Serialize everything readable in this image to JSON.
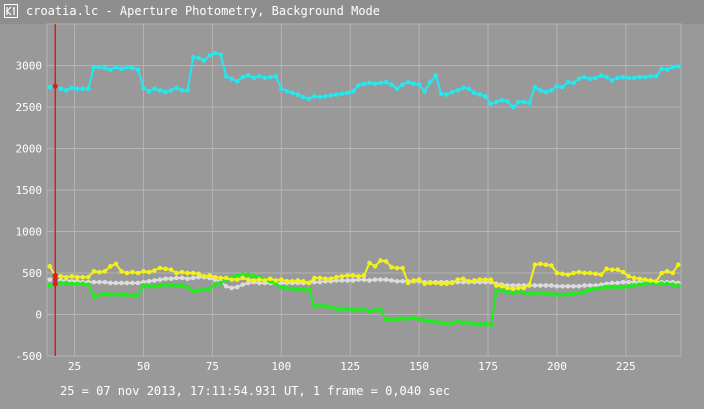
{
  "window": {
    "title": "croatia.lc - Aperture Photometry, Background Mode",
    "icon": "app-icon"
  },
  "status_bar": {
    "text": "25 = 07 nov 2013, 17:11:54.931 UT, 1 frame = 0,040 sec"
  },
  "colors": {
    "background": "#999999",
    "grid": "#b4b4b4",
    "cyan": "#22e8f2",
    "yellow": "#f2f21a",
    "green": "#18f018",
    "white": "#dcdcdc",
    "cursor": "#d62020"
  },
  "chart_data": {
    "type": "scatter",
    "title": "",
    "xlabel": "",
    "ylabel": "",
    "xlim": [
      15,
      245
    ],
    "ylim": [
      -500,
      3500
    ],
    "x_ticks": [
      25,
      50,
      75,
      100,
      125,
      150,
      175,
      200,
      225
    ],
    "y_ticks": [
      -500,
      0,
      500,
      1000,
      1500,
      2000,
      2500,
      3000
    ],
    "grid": true,
    "legend": "none",
    "cursor_x": 18,
    "series": [
      {
        "name": "",
        "color": "cyan",
        "x": [
          16,
          18,
          20,
          22,
          24,
          26,
          28,
          30,
          32,
          34,
          36,
          38,
          40,
          42,
          44,
          46,
          48,
          50,
          52,
          54,
          56,
          58,
          60,
          62,
          64,
          66,
          68,
          70,
          72,
          74,
          76,
          78,
          80,
          82,
          84,
          86,
          88,
          90,
          92,
          94,
          96,
          98,
          100,
          102,
          104,
          106,
          108,
          110,
          112,
          114,
          116,
          118,
          120,
          122,
          124,
          126,
          128,
          130,
          132,
          134,
          136,
          138,
          140,
          142,
          144,
          146,
          148,
          150,
          152,
          154,
          156,
          158,
          160,
          162,
          164,
          166,
          168,
          170,
          172,
          174,
          176,
          178,
          180,
          182,
          184,
          186,
          188,
          190,
          192,
          194,
          196,
          198,
          200,
          202,
          204,
          206,
          208,
          210,
          212,
          214,
          216,
          218,
          220,
          222,
          224,
          226,
          228,
          230,
          232,
          234,
          236,
          238,
          240,
          242,
          244
        ],
        "values": [
          2740,
          2750,
          2720,
          2700,
          2730,
          2720,
          2720,
          2720,
          2980,
          2980,
          2970,
          2950,
          2980,
          2960,
          2980,
          2970,
          2950,
          2730,
          2690,
          2720,
          2700,
          2680,
          2700,
          2730,
          2700,
          2700,
          3100,
          3090,
          3060,
          3120,
          3150,
          3130,
          2870,
          2840,
          2810,
          2860,
          2880,
          2850,
          2870,
          2850,
          2860,
          2870,
          2720,
          2690,
          2670,
          2650,
          2620,
          2600,
          2630,
          2620,
          2630,
          2640,
          2650,
          2660,
          2670,
          2690,
          2760,
          2780,
          2790,
          2780,
          2790,
          2800,
          2770,
          2720,
          2770,
          2800,
          2780,
          2770,
          2690,
          2800,
          2880,
          2660,
          2650,
          2680,
          2700,
          2730,
          2720,
          2670,
          2650,
          2630,
          2540,
          2560,
          2580,
          2570,
          2500,
          2560,
          2560,
          2550,
          2740,
          2700,
          2680,
          2700,
          2750,
          2740,
          2800,
          2790,
          2840,
          2860,
          2840,
          2850,
          2880,
          2860,
          2820,
          2850,
          2860,
          2850,
          2850,
          2860,
          2860,
          2870,
          2870,
          2960,
          2950,
          2980,
          2990
        ]
      },
      {
        "name": "",
        "color": "yellow",
        "x": [
          16,
          18,
          20,
          22,
          24,
          26,
          28,
          30,
          32,
          34,
          36,
          38,
          40,
          42,
          44,
          46,
          48,
          50,
          52,
          54,
          56,
          58,
          60,
          62,
          64,
          66,
          68,
          70,
          72,
          74,
          76,
          78,
          80,
          82,
          84,
          86,
          88,
          90,
          92,
          94,
          96,
          98,
          100,
          102,
          104,
          106,
          108,
          110,
          112,
          114,
          116,
          118,
          120,
          122,
          124,
          126,
          128,
          130,
          132,
          134,
          136,
          138,
          140,
          142,
          144,
          146,
          148,
          150,
          152,
          154,
          156,
          158,
          160,
          162,
          164,
          166,
          168,
          170,
          172,
          174,
          176,
          178,
          180,
          182,
          184,
          186,
          188,
          190,
          192,
          194,
          196,
          198,
          200,
          202,
          204,
          206,
          208,
          210,
          212,
          214,
          216,
          218,
          220,
          222,
          224,
          226,
          228,
          230,
          232,
          234,
          236,
          238,
          240,
          242,
          244
        ],
        "values": [
          580,
          470,
          460,
          450,
          460,
          450,
          450,
          450,
          520,
          510,
          520,
          580,
          610,
          520,
          500,
          510,
          500,
          520,
          510,
          530,
          560,
          550,
          540,
          500,
          510,
          500,
          500,
          490,
          460,
          470,
          450,
          440,
          440,
          420,
          420,
          440,
          420,
          410,
          420,
          410,
          430,
          410,
          420,
          400,
          400,
          410,
          400,
          380,
          440,
          440,
          430,
          430,
          450,
          460,
          470,
          470,
          460,
          470,
          620,
          580,
          650,
          640,
          570,
          560,
          560,
          380,
          410,
          420,
          370,
          380,
          380,
          370,
          370,
          380,
          420,
          430,
          400,
          410,
          420,
          420,
          420,
          350,
          340,
          320,
          310,
          320,
          320,
          360,
          600,
          610,
          600,
          590,
          500,
          490,
          480,
          500,
          510,
          500,
          500,
          490,
          480,
          550,
          540,
          540,
          510,
          460,
          440,
          430,
          420,
          410,
          400,
          500,
          520,
          500,
          600
        ]
      },
      {
        "name": "",
        "color": "white",
        "x": [
          16,
          18,
          20,
          22,
          24,
          26,
          28,
          30,
          32,
          34,
          36,
          38,
          40,
          42,
          44,
          46,
          48,
          50,
          52,
          54,
          56,
          58,
          60,
          62,
          64,
          66,
          68,
          70,
          72,
          74,
          76,
          78,
          80,
          82,
          84,
          86,
          88,
          90,
          92,
          94,
          96,
          98,
          100,
          102,
          104,
          106,
          108,
          110,
          112,
          114,
          116,
          118,
          120,
          122,
          124,
          126,
          128,
          130,
          132,
          134,
          136,
          138,
          140,
          142,
          144,
          146,
          148,
          150,
          152,
          154,
          156,
          158,
          160,
          162,
          164,
          166,
          168,
          170,
          172,
          174,
          176,
          178,
          180,
          182,
          184,
          186,
          188,
          190,
          192,
          194,
          196,
          198,
          200,
          202,
          204,
          206,
          208,
          210,
          212,
          214,
          216,
          218,
          220,
          222,
          224,
          226,
          228,
          230,
          232,
          234,
          236,
          238,
          240,
          242,
          244
        ],
        "values": [
          420,
          420,
          410,
          410,
          400,
          400,
          390,
          390,
          390,
          390,
          390,
          380,
          380,
          380,
          380,
          380,
          380,
          390,
          400,
          410,
          420,
          430,
          430,
          440,
          440,
          430,
          440,
          450,
          450,
          440,
          420,
          400,
          340,
          320,
          330,
          360,
          380,
          390,
          380,
          380,
          380,
          370,
          380,
          380,
          380,
          380,
          380,
          380,
          390,
          390,
          400,
          400,
          410,
          410,
          410,
          410,
          420,
          420,
          410,
          420,
          420,
          420,
          410,
          400,
          400,
          400,
          400,
          400,
          390,
          390,
          390,
          390,
          390,
          390,
          390,
          390,
          390,
          390,
          390,
          390,
          390,
          370,
          360,
          350,
          350,
          350,
          350,
          350,
          350,
          350,
          350,
          350,
          340,
          340,
          340,
          340,
          340,
          350,
          350,
          350,
          360,
          370,
          380,
          380,
          390,
          390,
          390,
          390,
          400,
          400,
          390,
          390,
          390,
          390,
          380
        ]
      },
      {
        "name": "",
        "color": "green",
        "x": [
          16,
          18,
          20,
          22,
          24,
          26,
          28,
          30,
          32,
          34,
          36,
          38,
          40,
          42,
          44,
          46,
          48,
          50,
          52,
          54,
          56,
          58,
          60,
          62,
          64,
          66,
          68,
          70,
          72,
          74,
          76,
          78,
          80,
          82,
          84,
          86,
          88,
          90,
          92,
          94,
          96,
          98,
          100,
          102,
          104,
          106,
          108,
          110,
          112,
          114,
          116,
          118,
          120,
          122,
          124,
          126,
          128,
          130,
          132,
          134,
          136,
          138,
          140,
          142,
          144,
          146,
          148,
          150,
          152,
          154,
          156,
          158,
          160,
          162,
          164,
          166,
          168,
          170,
          172,
          174,
          176,
          178,
          180,
          182,
          184,
          186,
          188,
          190,
          192,
          194,
          196,
          198,
          200,
          202,
          204,
          206,
          208,
          210,
          212,
          214,
          216,
          218,
          220,
          222,
          224,
          226,
          228,
          230,
          232,
          234,
          236,
          238,
          240,
          242,
          244
        ],
        "values": [
          350,
          370,
          380,
          380,
          370,
          370,
          370,
          360,
          220,
          230,
          250,
          240,
          240,
          240,
          240,
          230,
          230,
          350,
          340,
          340,
          350,
          360,
          350,
          350,
          350,
          320,
          280,
          290,
          300,
          310,
          360,
          380,
          420,
          450,
          470,
          480,
          480,
          460,
          440,
          420,
          400,
          370,
          330,
          320,
          310,
          300,
          300,
          300,
          100,
          110,
          100,
          90,
          70,
          60,
          70,
          50,
          60,
          60,
          30,
          50,
          60,
          -60,
          -60,
          -60,
          -50,
          -50,
          -40,
          -60,
          -70,
          -80,
          -90,
          -100,
          -110,
          -110,
          -80,
          -100,
          -100,
          -110,
          -120,
          -110,
          -130,
          280,
          290,
          270,
          260,
          270,
          260,
          250,
          250,
          260,
          250,
          250,
          240,
          240,
          240,
          250,
          260,
          270,
          300,
          310,
          320,
          330,
          330,
          330,
          330,
          340,
          350,
          360,
          380,
          380,
          380,
          370,
          370,
          360,
          350
        ]
      }
    ]
  }
}
